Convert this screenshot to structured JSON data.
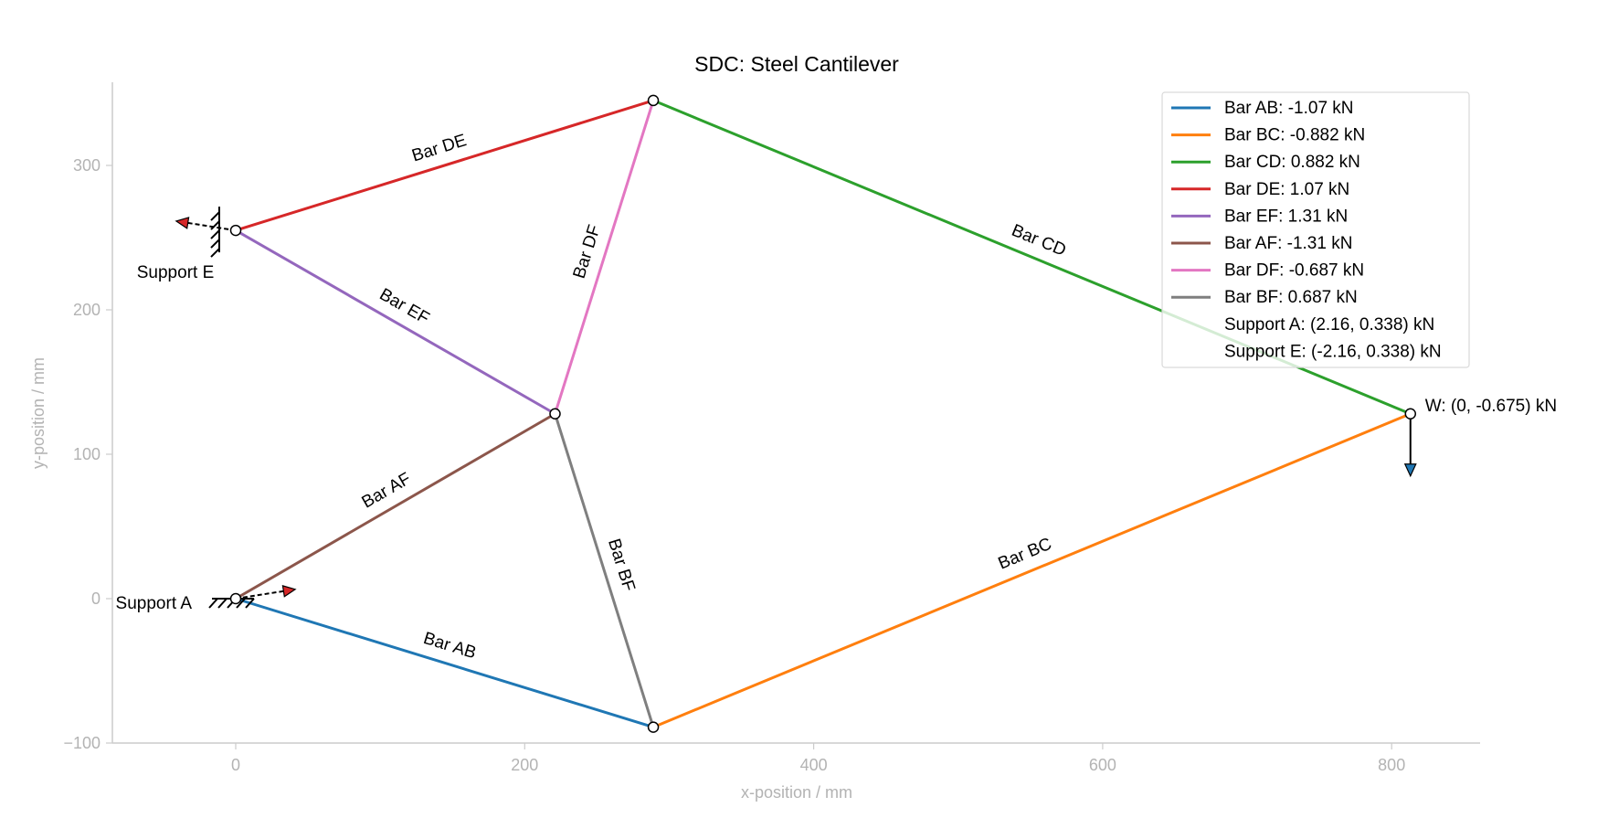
{
  "chart_data": {
    "type": "truss-diagram",
    "title": "SDC: Steel Cantilever",
    "xlabel": "x-position /  mm",
    "ylabel": "y-position /  mm",
    "xlim": [
      -85,
      860
    ],
    "ylim": [
      -100,
      355
    ],
    "xticks": [
      0,
      200,
      400,
      600,
      800
    ],
    "yticks": [
      -100,
      0,
      100,
      200,
      300
    ],
    "xtick_labels": [
      "0",
      "200",
      "400",
      "600",
      "800"
    ],
    "ytick_labels": [
      "−100",
      "0",
      "100",
      "200",
      "300"
    ],
    "nodes": {
      "A": [
        0,
        0
      ],
      "B": [
        289,
        -89
      ],
      "C": [
        813,
        128
      ],
      "D": [
        289,
        345
      ],
      "E": [
        0,
        255
      ],
      "F": [
        221,
        128
      ]
    },
    "bars": [
      {
        "name": "Bar AB",
        "from": "A",
        "to": "B",
        "color": "#1f77b4",
        "legend": "Bar AB: -1.07 kN"
      },
      {
        "name": "Bar BC",
        "from": "B",
        "to": "C",
        "color": "#ff7f0e",
        "legend": "Bar BC: -0.882 kN"
      },
      {
        "name": "Bar CD",
        "from": "C",
        "to": "D",
        "color": "#2ca02c",
        "legend": "Bar CD: 0.882 kN"
      },
      {
        "name": "Bar DE",
        "from": "D",
        "to": "E",
        "color": "#d62728",
        "legend": "Bar DE: 1.07 kN"
      },
      {
        "name": "Bar EF",
        "from": "E",
        "to": "F",
        "color": "#9467bd",
        "legend": "Bar EF: 1.31 kN"
      },
      {
        "name": "Bar AF",
        "from": "A",
        "to": "F",
        "color": "#8c564b",
        "legend": "Bar AF: -1.31 kN"
      },
      {
        "name": "Bar DF",
        "from": "D",
        "to": "F",
        "color": "#e377c2",
        "legend": "Bar DF: -0.687 kN"
      },
      {
        "name": "Bar BF",
        "from": "B",
        "to": "F",
        "color": "#7f7f7f",
        "legend": "Bar BF: 0.687 kN"
      }
    ],
    "supports": [
      {
        "name": "Support A",
        "node": "A",
        "reaction": [
          2.16,
          0.338
        ],
        "legend": "Support A: (2.16, 0.338) kN"
      },
      {
        "name": "Support E",
        "node": "E",
        "reaction": [
          -2.16,
          0.338
        ],
        "legend": "Support E: (-2.16, 0.338) kN"
      }
    ],
    "loads": [
      {
        "label": "W: (0, -0.675) kN",
        "node": "C",
        "force": [
          0,
          -0.675
        ],
        "color": "#1f77b4"
      }
    ],
    "legend_position": "upper right",
    "grid": false
  }
}
